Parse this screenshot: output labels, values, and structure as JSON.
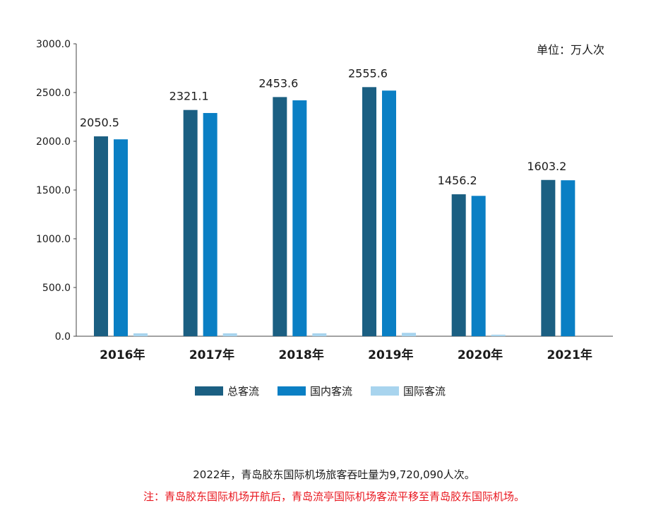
{
  "unit_label": "单位：万人次",
  "chart_data": {
    "type": "bar",
    "categories": [
      "2016年",
      "2017年",
      "2018年",
      "2019年",
      "2020年",
      "2021年"
    ],
    "series": [
      {
        "name": "总客流",
        "values": [
          2050.5,
          2321.1,
          2453.6,
          2555.6,
          1456.2,
          1603.2
        ],
        "color": "#1b5f82"
      },
      {
        "name": "国内客流",
        "values": [
          2020,
          2290,
          2420,
          2520,
          1440,
          1600
        ],
        "color": "#0a7fc4"
      },
      {
        "name": "国际客流",
        "values": [
          30,
          30,
          30,
          35,
          16,
          0
        ],
        "color": "#a8d4ee"
      }
    ],
    "data_labels": [
      "2050.5",
      "2321.1",
      "2453.6",
      "2555.6",
      "1456.2",
      "1603.2"
    ],
    "yticks": [
      "0.0",
      "500.0",
      "1000.0",
      "1500.0",
      "2000.0",
      "2500.0",
      "3000.0"
    ],
    "ylim": [
      0,
      3000
    ],
    "grid": false,
    "legend_position": "bottom"
  },
  "notes": {
    "summary": "2022年，青岛胶东国际机场旅客吞吐量为9,720,090人次。",
    "remark": "注：青岛胶东国际机场开航后，青岛流亭国际机场客流平移至青岛胶东国际机场。",
    "remark_color": "#e8141c"
  }
}
